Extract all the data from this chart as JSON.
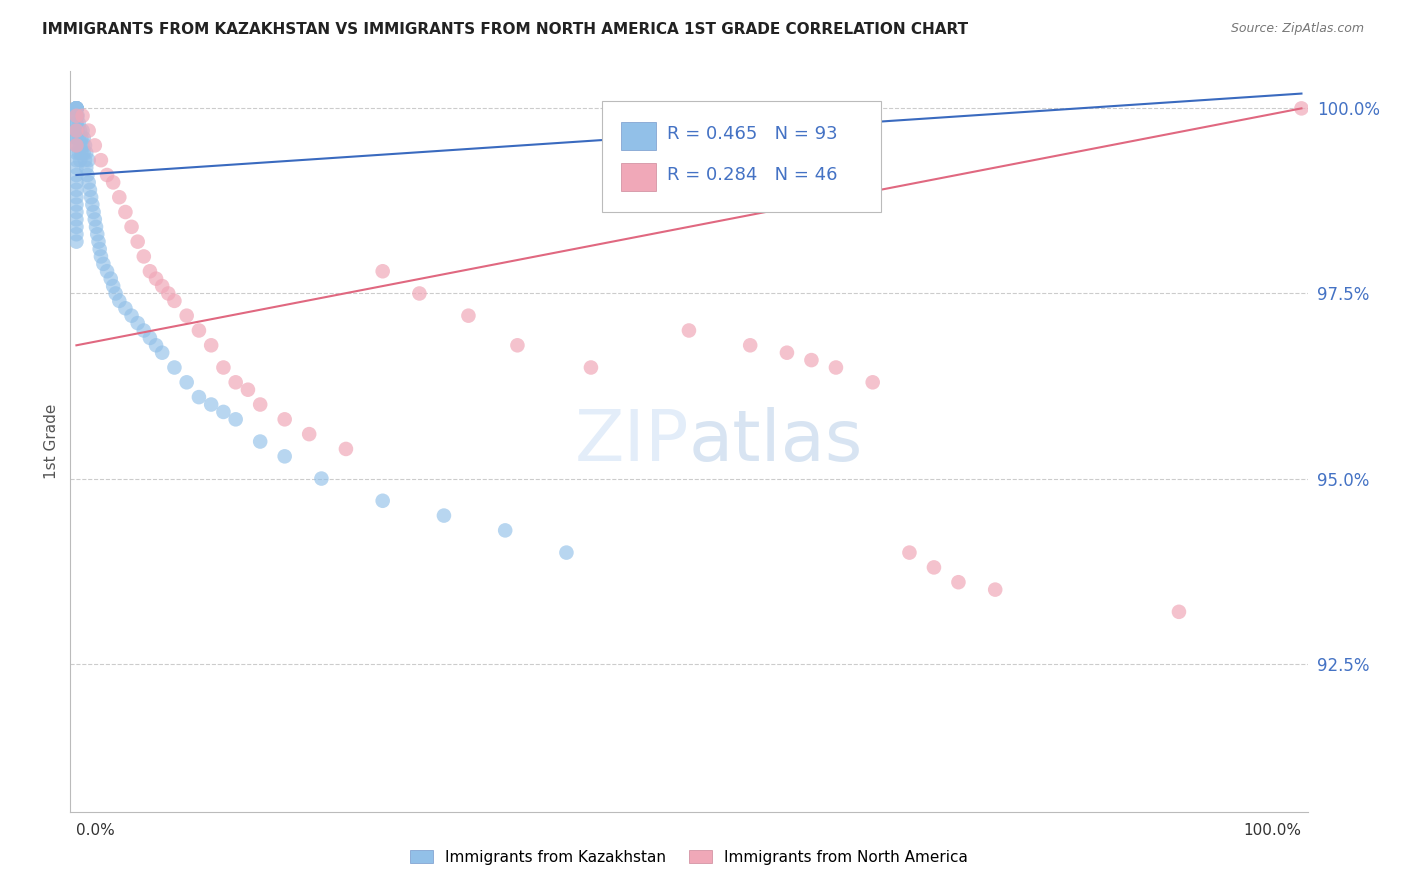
{
  "title": "IMMIGRANTS FROM KAZAKHSTAN VS IMMIGRANTS FROM NORTH AMERICA 1ST GRADE CORRELATION CHART",
  "source": "Source: ZipAtlas.com",
  "ylabel": "1st Grade",
  "ytick_labels": [
    "100.0%",
    "97.5%",
    "95.0%",
    "92.5%"
  ],
  "ytick_values": [
    1.0,
    0.975,
    0.95,
    0.925
  ],
  "xlim": [
    0.0,
    1.0
  ],
  "ylim": [
    0.905,
    1.005
  ],
  "legend1_r": "0.465",
  "legend1_n": "93",
  "legend2_r": "0.284",
  "legend2_n": "46",
  "legend_label1": "Immigrants from Kazakhstan",
  "legend_label2": "Immigrants from North America",
  "color_blue": "#92c0e8",
  "color_pink": "#f0a8b8",
  "color_line_blue": "#3a6abf",
  "color_line_pink": "#e06880",
  "watermark": "ZIPatlas",
  "background_color": "#ffffff",
  "blue_x": [
    0.0,
    0.0,
    0.0,
    0.0,
    0.0,
    0.0,
    0.0,
    0.0,
    0.0,
    0.0,
    0.0,
    0.0,
    0.0,
    0.0,
    0.0,
    0.0,
    0.0,
    0.0,
    0.0,
    0.0,
    0.0,
    0.0,
    0.0,
    0.0,
    0.0,
    0.0,
    0.0,
    0.0,
    0.0,
    0.0,
    0.0,
    0.0,
    0.0,
    0.0,
    0.0,
    0.001,
    0.001,
    0.001,
    0.002,
    0.002,
    0.002,
    0.003,
    0.003,
    0.003,
    0.004,
    0.004,
    0.005,
    0.005,
    0.006,
    0.006,
    0.007,
    0.007,
    0.008,
    0.008,
    0.009,
    0.01,
    0.01,
    0.011,
    0.012,
    0.013,
    0.014,
    0.015,
    0.016,
    0.017,
    0.018,
    0.019,
    0.02,
    0.022,
    0.025,
    0.028,
    0.03,
    0.032,
    0.035,
    0.04,
    0.045,
    0.05,
    0.055,
    0.06,
    0.065,
    0.07,
    0.08,
    0.09,
    0.1,
    0.11,
    0.12,
    0.13,
    0.15,
    0.17,
    0.2,
    0.25,
    0.3,
    0.35,
    0.4
  ],
  "blue_y": [
    1.0,
    1.0,
    1.0,
    1.0,
    1.0,
    1.0,
    1.0,
    1.0,
    1.0,
    1.0,
    1.0,
    1.0,
    1.0,
    0.999,
    0.999,
    0.998,
    0.998,
    0.997,
    0.997,
    0.996,
    0.996,
    0.995,
    0.994,
    0.993,
    0.992,
    0.991,
    0.99,
    0.989,
    0.988,
    0.987,
    0.986,
    0.985,
    0.984,
    0.983,
    0.982,
    0.999,
    0.997,
    0.995,
    0.998,
    0.996,
    0.994,
    0.997,
    0.995,
    0.993,
    0.996,
    0.994,
    0.997,
    0.995,
    0.996,
    0.994,
    0.995,
    0.993,
    0.994,
    0.992,
    0.991,
    0.993,
    0.99,
    0.989,
    0.988,
    0.987,
    0.986,
    0.985,
    0.984,
    0.983,
    0.982,
    0.981,
    0.98,
    0.979,
    0.978,
    0.977,
    0.976,
    0.975,
    0.974,
    0.973,
    0.972,
    0.971,
    0.97,
    0.969,
    0.968,
    0.967,
    0.965,
    0.963,
    0.961,
    0.96,
    0.959,
    0.958,
    0.955,
    0.953,
    0.95,
    0.947,
    0.945,
    0.943,
    0.94
  ],
  "pink_x": [
    0.0,
    0.0,
    0.0,
    0.005,
    0.01,
    0.015,
    0.02,
    0.025,
    0.03,
    0.035,
    0.04,
    0.045,
    0.05,
    0.055,
    0.06,
    0.065,
    0.07,
    0.075,
    0.08,
    0.09,
    0.1,
    0.11,
    0.12,
    0.13,
    0.14,
    0.15,
    0.17,
    0.19,
    0.22,
    0.25,
    0.28,
    0.32,
    0.36,
    0.42,
    0.5,
    0.55,
    0.58,
    0.6,
    0.62,
    0.65,
    0.68,
    0.7,
    0.72,
    0.75,
    0.9,
    1.0
  ],
  "pink_y": [
    0.999,
    0.997,
    0.995,
    0.999,
    0.997,
    0.995,
    0.993,
    0.991,
    0.99,
    0.988,
    0.986,
    0.984,
    0.982,
    0.98,
    0.978,
    0.977,
    0.976,
    0.975,
    0.974,
    0.972,
    0.97,
    0.968,
    0.965,
    0.963,
    0.962,
    0.96,
    0.958,
    0.956,
    0.954,
    0.978,
    0.975,
    0.972,
    0.968,
    0.965,
    0.97,
    0.968,
    0.967,
    0.966,
    0.965,
    0.963,
    0.94,
    0.938,
    0.936,
    0.935,
    0.932,
    1.0
  ],
  "blue_line_x0": 0.0,
  "blue_line_x1": 1.0,
  "blue_line_y0": 0.991,
  "blue_line_y1": 1.002,
  "pink_line_x0": 0.0,
  "pink_line_x1": 1.0,
  "pink_line_y0": 0.968,
  "pink_line_y1": 1.0
}
